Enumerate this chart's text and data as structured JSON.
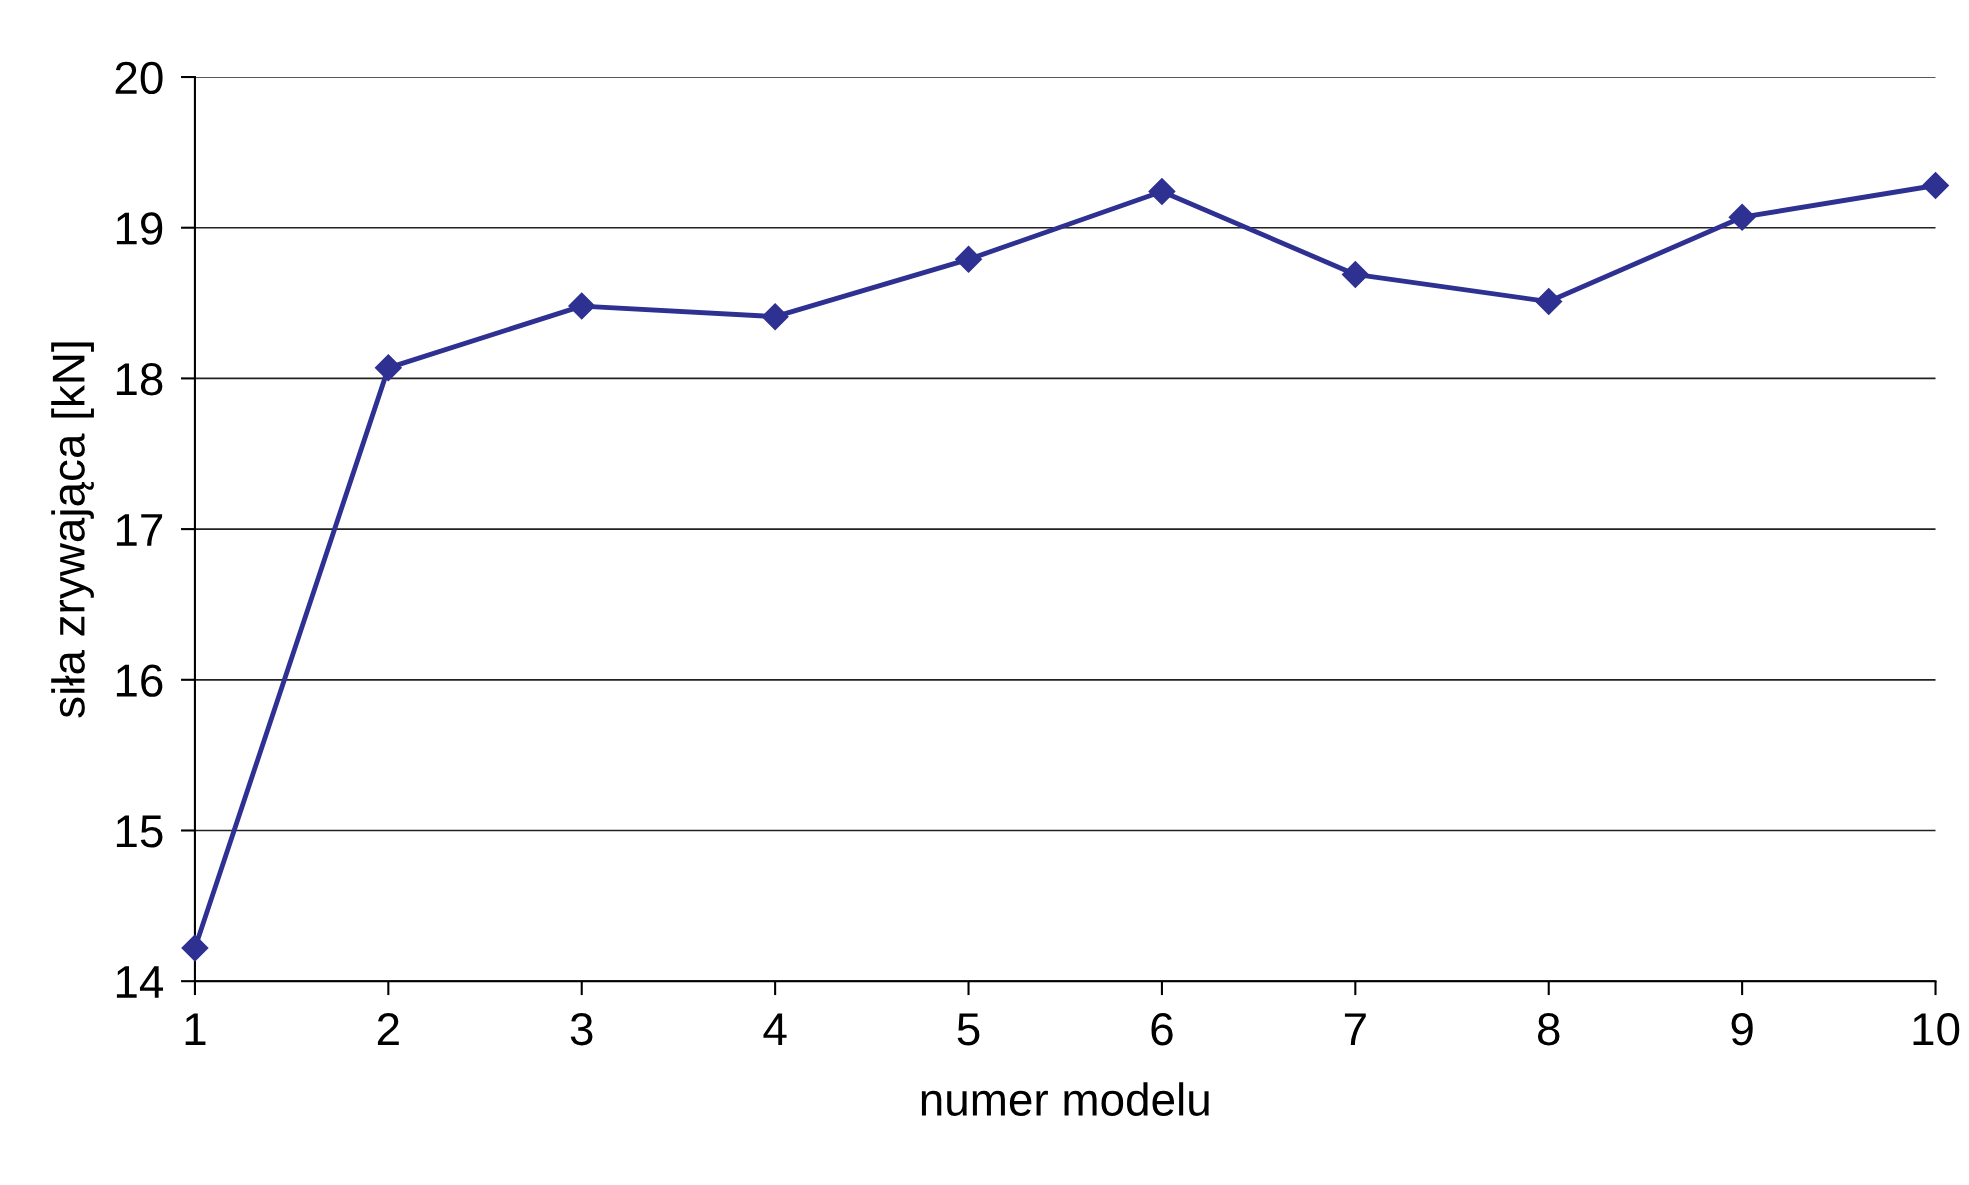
{
  "chart_data": {
    "type": "line",
    "xlabel": "numer modelu",
    "ylabel": "siła zrywająca [kN]",
    "x": [
      1,
      2,
      3,
      4,
      5,
      6,
      7,
      8,
      9,
      10
    ],
    "series": [
      {
        "color": "#2e3192",
        "values": [
          14.22,
          18.07,
          18.48,
          18.41,
          18.79,
          19.24,
          18.69,
          18.51,
          19.07,
          19.28
        ]
      }
    ],
    "xlim": [
      1,
      10
    ],
    "xticks": [
      1,
      2,
      3,
      4,
      5,
      6,
      7,
      8,
      9,
      10
    ],
    "ylim": [
      14,
      20
    ],
    "yticks": [
      14,
      15,
      16,
      17,
      18,
      19,
      20
    ],
    "grid": "y",
    "marker": "diamond",
    "line_style": "solid"
  }
}
